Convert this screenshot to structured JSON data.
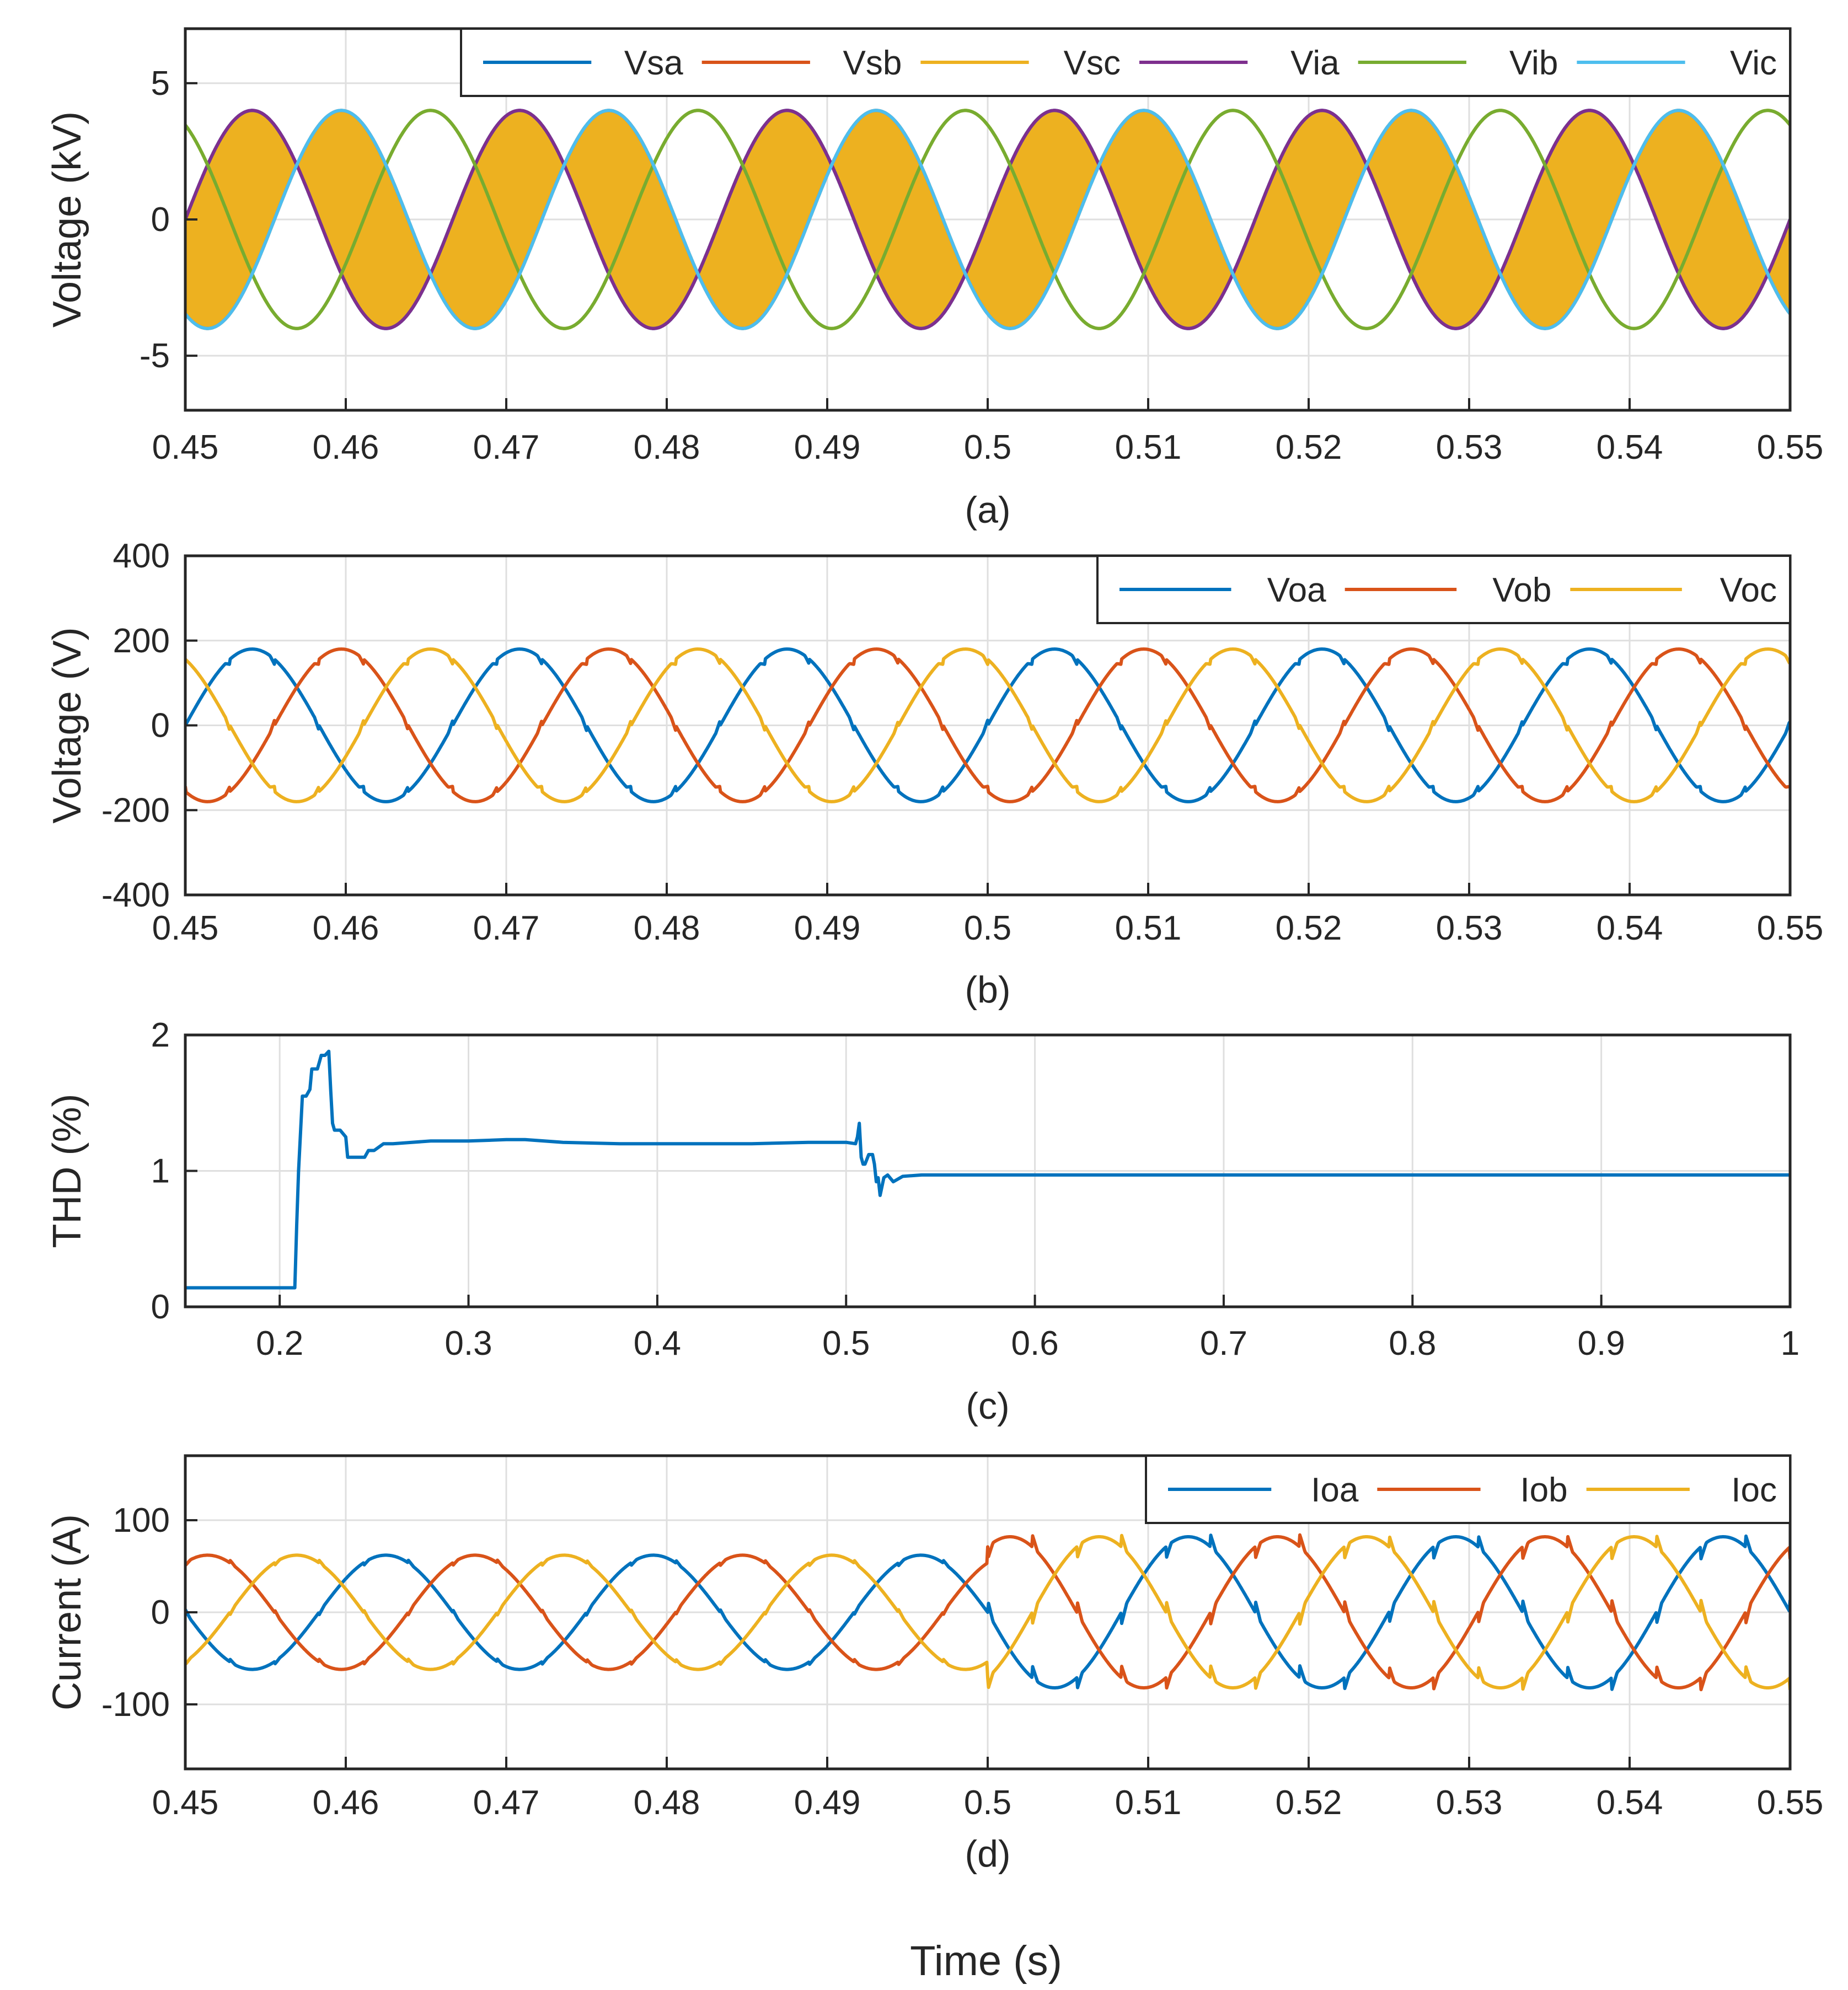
{
  "figure": {
    "xlabel": "Time (s)"
  },
  "colors": {
    "blue": "#0072BD",
    "orange": "#D95319",
    "yellow": "#EDB120",
    "purple": "#7E2F8E",
    "green": "#77AC30",
    "lightblue": "#4DBEEE",
    "grid": "#dfdfdf",
    "axis": "#262626"
  },
  "chart_data": [
    {
      "id": "a",
      "type": "line",
      "caption": "(a)",
      "ylabel": "Voltage (kV)",
      "xlim": [
        0.45,
        0.55
      ],
      "ylim": [
        -7,
        7
      ],
      "xticks": [
        0.45,
        0.46,
        0.47,
        0.48,
        0.49,
        0.5,
        0.51,
        0.52,
        0.53,
        0.54,
        0.55
      ],
      "xtick_labels": [
        "0.45",
        "0.46",
        "0.47",
        "0.48",
        "0.49",
        "0.5",
        "0.51",
        "0.52",
        "0.53",
        "0.54",
        "0.55"
      ],
      "yticks": [
        -5,
        0,
        5
      ],
      "ytick_labels": [
        "-5",
        "0",
        "5"
      ],
      "legend": {
        "location": "top-right",
        "entries": [
          "Vsa",
          "Vsb",
          "Vsc",
          "Via",
          "Vib",
          "Vic"
        ]
      },
      "series": [
        {
          "name": "Vsa",
          "color": "blue",
          "kind": "sine",
          "amp": 4.0,
          "freq": 60,
          "phase_deg": 0
        },
        {
          "name": "Vsb",
          "color": "orange",
          "kind": "sine",
          "amp": 4.0,
          "freq": 60,
          "phase_deg": -120
        },
        {
          "name": "Vsc",
          "color": "yellow",
          "kind": "sine",
          "amp": 4.0,
          "freq": 60,
          "phase_deg": 120
        },
        {
          "name": "Via",
          "color": "purple",
          "kind": "sine",
          "amp": 4.0,
          "freq": 60,
          "phase_deg": 0
        },
        {
          "name": "Vib",
          "color": "green",
          "kind": "sine",
          "amp": 4.0,
          "freq": 60,
          "phase_deg": 120
        },
        {
          "name": "Vic",
          "color": "lightblue",
          "kind": "sine",
          "amp": 4.0,
          "freq": 60,
          "phase_deg": -120
        }
      ]
    },
    {
      "id": "b",
      "type": "line",
      "caption": "(b)",
      "ylabel": "Voltage (V)",
      "xlim": [
        0.45,
        0.55
      ],
      "ylim": [
        -400,
        400
      ],
      "xticks": [
        0.45,
        0.46,
        0.47,
        0.48,
        0.49,
        0.5,
        0.51,
        0.52,
        0.53,
        0.54,
        0.55
      ],
      "xtick_labels": [
        "0.45",
        "0.46",
        "0.47",
        "0.48",
        "0.49",
        "0.5",
        "0.51",
        "0.52",
        "0.53",
        "0.54",
        "0.55"
      ],
      "yticks": [
        -400,
        -200,
        0,
        200,
        400
      ],
      "ytick_labels": [
        "-400",
        "-200",
        "0",
        "200",
        "400"
      ],
      "legend": {
        "location": "top-right",
        "entries": [
          "Voa",
          "Vob",
          "Voc"
        ]
      },
      "series": [
        {
          "name": "Voa",
          "color": "blue",
          "kind": "sine",
          "amp": 180,
          "freq": 60,
          "phase_deg": 0,
          "notch": 12
        },
        {
          "name": "Vob",
          "color": "orange",
          "kind": "sine",
          "amp": 180,
          "freq": 60,
          "phase_deg": -120,
          "notch": 12
        },
        {
          "name": "Voc",
          "color": "yellow",
          "kind": "sine",
          "amp": 180,
          "freq": 60,
          "phase_deg": 120,
          "notch": 12
        }
      ]
    },
    {
      "id": "c",
      "type": "line",
      "caption": "(c)",
      "ylabel": "THD (%)",
      "xlim": [
        0.15,
        1.0
      ],
      "ylim": [
        0,
        2
      ],
      "xticks": [
        0.2,
        0.3,
        0.4,
        0.5,
        0.6,
        0.7,
        0.8,
        0.9,
        1.0
      ],
      "xtick_labels": [
        "0.2",
        "0.3",
        "0.4",
        "0.5",
        "0.6",
        "0.7",
        "0.8",
        "0.9",
        "1"
      ],
      "yticks": [
        0,
        1,
        2
      ],
      "ytick_labels": [
        "0",
        "1",
        "2"
      ],
      "series": [
        {
          "name": "THD",
          "color": "blue",
          "kind": "points",
          "x": [
            0.15,
            0.208,
            0.209,
            0.21,
            0.212,
            0.214,
            0.216,
            0.217,
            0.22,
            0.221,
            0.222,
            0.224,
            0.226,
            0.227,
            0.228,
            0.229,
            0.232,
            0.235,
            0.236,
            0.238,
            0.24,
            0.245,
            0.247,
            0.25,
            0.255,
            0.26,
            0.27,
            0.28,
            0.3,
            0.32,
            0.33,
            0.35,
            0.38,
            0.4,
            0.42,
            0.45,
            0.48,
            0.5,
            0.505,
            0.506,
            0.507,
            0.508,
            0.509,
            0.51,
            0.512,
            0.514,
            0.515,
            0.516,
            0.517,
            0.518,
            0.52,
            0.522,
            0.525,
            0.53,
            0.54,
            0.6,
            0.7,
            0.8,
            0.9,
            1.0
          ],
          "y": [
            0.14,
            0.14,
            0.6,
            1.0,
            1.55,
            1.55,
            1.6,
            1.75,
            1.75,
            1.8,
            1.85,
            1.85,
            1.88,
            1.6,
            1.35,
            1.3,
            1.3,
            1.25,
            1.1,
            1.1,
            1.1,
            1.1,
            1.15,
            1.15,
            1.2,
            1.2,
            1.21,
            1.22,
            1.22,
            1.23,
            1.23,
            1.21,
            1.2,
            1.2,
            1.2,
            1.2,
            1.21,
            1.21,
            1.2,
            1.25,
            1.35,
            1.1,
            1.05,
            1.05,
            1.12,
            1.12,
            1.05,
            0.92,
            0.95,
            0.82,
            0.95,
            0.97,
            0.92,
            0.96,
            0.97,
            0.97,
            0.97,
            0.97,
            0.97,
            0.97
          ]
        }
      ]
    },
    {
      "id": "d",
      "type": "line",
      "caption": "(d)",
      "ylabel": "Current (A)",
      "xlim": [
        0.45,
        0.55
      ],
      "ylim": [
        -170,
        170
      ],
      "xticks": [
        0.45,
        0.46,
        0.47,
        0.48,
        0.49,
        0.5,
        0.51,
        0.52,
        0.53,
        0.54,
        0.55
      ],
      "xtick_labels": [
        "0.45",
        "0.46",
        "0.47",
        "0.48",
        "0.49",
        "0.5",
        "0.51",
        "0.52",
        "0.53",
        "0.54",
        "0.55"
      ],
      "yticks": [
        -100,
        0,
        100
      ],
      "ytick_labels": [
        "-100",
        "0",
        "100"
      ],
      "legend": {
        "location": "top-right",
        "entries": [
          "Ioa",
          "Iob",
          "Ioc"
        ]
      },
      "series": [
        {
          "name": "Ioa",
          "color": "blue",
          "kind": "sine",
          "freq": 60,
          "phase_deg": -180,
          "amp_before": 62,
          "amp_after": 82,
          "change_t": 0.5,
          "notch_before": 5,
          "notch_after": 22
        },
        {
          "name": "Iob",
          "color": "orange",
          "kind": "sine",
          "freq": 60,
          "phase_deg": 60,
          "amp_before": 62,
          "amp_after": 82,
          "change_t": 0.5,
          "notch_before": 5,
          "notch_after": 22
        },
        {
          "name": "Ioc",
          "color": "yellow",
          "kind": "sine",
          "freq": 60,
          "phase_deg": -60,
          "amp_before": 62,
          "amp_after": 82,
          "change_t": 0.5,
          "notch_before": 5,
          "notch_after": 22
        }
      ]
    }
  ]
}
